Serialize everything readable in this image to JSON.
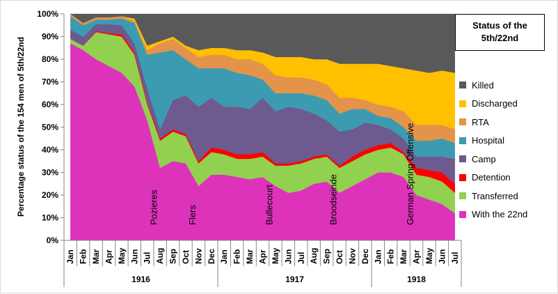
{
  "chart_data": {
    "type": "area",
    "stacked": true,
    "title": "Status of the\n5th/22nd",
    "ylabel": "Percentage status of the 154 men of 5th/22nd",
    "xlabel": "",
    "ylim": [
      0,
      100
    ],
    "ytick_labels": [
      "0%",
      "10%",
      "20%",
      "30%",
      "40%",
      "50%",
      "60%",
      "70%",
      "80%",
      "90%",
      "100%"
    ],
    "categories": [
      "Jan",
      "Feb",
      "Mar",
      "Apr",
      "May",
      "Jun",
      "Jul",
      "Aug",
      "Sep",
      "Oct",
      "Nov",
      "Dec",
      "Jan",
      "Feb",
      "Mar",
      "Apr",
      "May",
      "Jun",
      "Jul",
      "Aug",
      "Sep",
      "Oct",
      "Nov",
      "Dec",
      "Jan",
      "Feb",
      "Mar",
      "Apr",
      "May",
      "Jun",
      "Jul"
    ],
    "year_groups": [
      {
        "label": "1916",
        "start": 0,
        "end": 11
      },
      {
        "label": "1917",
        "start": 12,
        "end": 23
      },
      {
        "label": "1918",
        "start": 24,
        "end": 30
      }
    ],
    "series": [
      {
        "name": "With the 22nd",
        "color": "#dd33bb",
        "values": [
          87,
          84,
          80,
          77,
          74,
          68,
          53,
          32,
          35,
          34,
          24,
          29,
          29,
          28,
          27,
          28,
          24,
          21,
          22,
          25,
          26,
          21,
          24,
          27,
          30,
          30,
          28,
          20,
          18,
          16,
          12
        ]
      },
      {
        "name": "Transferred",
        "color": "#92d050",
        "values": [
          2,
          2,
          12,
          14,
          16,
          14,
          7,
          12,
          13,
          12,
          10,
          10,
          9,
          8,
          9,
          9,
          9,
          12,
          12,
          11,
          11,
          11,
          11,
          11,
          10,
          11,
          10,
          9,
          10,
          10,
          9
        ]
      },
      {
        "name": "Detention",
        "color": "#ff0000",
        "values": [
          0,
          0,
          0.5,
          0.5,
          1,
          1,
          1,
          1,
          1,
          1,
          1,
          2,
          2,
          2,
          2,
          2,
          1,
          1,
          1,
          1,
          1,
          1,
          2,
          2,
          2,
          2,
          1,
          3,
          3,
          4,
          4
        ]
      },
      {
        "name": "Camp",
        "color": "#6d5a8f",
        "values": [
          4,
          4,
          3,
          4,
          4,
          4,
          6,
          4,
          13,
          17,
          24,
          22,
          19,
          21,
          20,
          24,
          23,
          25,
          23,
          19,
          15,
          15,
          12,
          12,
          9,
          6,
          6,
          5,
          6,
          7,
          11
        ]
      },
      {
        "name": "Hospital",
        "color": "#3c9bb0",
        "values": [
          6,
          5,
          2,
          2,
          3,
          9,
          15,
          34,
          22,
          16,
          17,
          13,
          17,
          15,
          15,
          8,
          8,
          6,
          7,
          8,
          9,
          8,
          9,
          6,
          4,
          5,
          5,
          7,
          7,
          8,
          7
        ]
      },
      {
        "name": "RTA",
        "color": "#e4934a",
        "values": [
          1,
          1,
          1,
          1,
          1,
          1,
          2,
          4,
          5,
          5,
          5,
          6,
          6,
          6,
          7,
          7,
          8,
          7,
          7,
          7,
          7,
          7,
          5,
          4,
          5,
          5,
          7,
          7,
          7,
          6,
          6
        ]
      },
      {
        "name": "Discharged",
        "color": "#ffc000",
        "values": [
          0,
          0,
          0,
          0,
          0,
          1,
          2,
          1,
          1,
          1,
          3,
          3,
          3,
          4,
          4,
          5,
          8,
          9,
          9,
          9,
          11,
          15,
          15,
          16,
          18,
          18,
          19,
          24,
          23,
          24,
          25
        ]
      },
      {
        "name": "Killed",
        "color": "#595959",
        "values": [
          0,
          4,
          1.5,
          1.5,
          1,
          2,
          14,
          12,
          10,
          14,
          16,
          15,
          15,
          16,
          16,
          17,
          19,
          19,
          19,
          20,
          20,
          22,
          22,
          22,
          22,
          23,
          24,
          25,
          26,
          25,
          26
        ]
      }
    ],
    "annotations": [
      {
        "text": "Pozieres",
        "index": 7
      },
      {
        "text": "Flers",
        "index": 10
      },
      {
        "text": "Bullecourt",
        "index": 16
      },
      {
        "text": "Broodseinde",
        "index": 21
      },
      {
        "text": "German Spring Offensive",
        "index": 27
      }
    ],
    "legend_order": [
      "Killed",
      "Discharged",
      "RTA",
      "Hospital",
      "Camp",
      "Detention",
      "Transferred",
      "With the 22nd"
    ],
    "legend_placement": "right",
    "grid": false
  }
}
